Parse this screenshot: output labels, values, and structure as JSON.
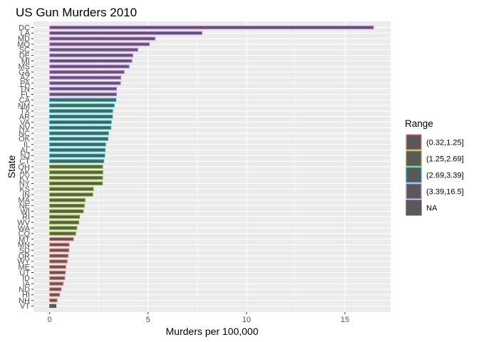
{
  "chart_data": {
    "type": "bar",
    "orientation": "horizontal",
    "title": "US Gun Murders 2010",
    "xlabel": "Murders per 100,000",
    "ylabel": "State",
    "xlim": [
      -0.82,
      17.32
    ],
    "x_ticks": [
      0,
      5,
      10,
      15
    ],
    "x_tick_labels": [
      "0",
      "5",
      "10",
      "15"
    ],
    "grid": true,
    "legend_position": "right",
    "legend": {
      "title": "Range",
      "entries": [
        {
          "label": "(0.32,1.25]",
          "color": "#F8766D"
        },
        {
          "label": "(1.25,2.69]",
          "color": "#7CAE00"
        },
        {
          "label": "(2.69,3.39]",
          "color": "#00BFC4"
        },
        {
          "label": "(3.39,16.5]",
          "color": "#C77CFF"
        },
        {
          "label": "NA",
          "color": "#595959"
        }
      ]
    },
    "categories": [
      "DC",
      "LA",
      "MD",
      "MO",
      "SC",
      "DE",
      "MI",
      "MS",
      "GA",
      "AZ",
      "PA",
      "TN",
      "FL",
      "CA",
      "NM",
      "TX",
      "AR",
      "VA",
      "NV",
      "NC",
      "OK",
      "IL",
      "AL",
      "NJ",
      "CT",
      "OH",
      "AK",
      "KY",
      "NY",
      "KS",
      "IN",
      "MA",
      "NE",
      "WI",
      "RI",
      "WV",
      "WA",
      "CO",
      "MT",
      "MN",
      "SD",
      "OR",
      "WY",
      "ME",
      "UT",
      "ID",
      "IA",
      "ND",
      "HI",
      "NH",
      "VT"
    ],
    "values": [
      16.45,
      7.74,
      5.36,
      5.07,
      4.48,
      4.23,
      4.18,
      4.04,
      3.79,
      3.62,
      3.6,
      3.4,
      3.4,
      3.37,
      3.28,
      3.2,
      3.19,
      3.13,
      3.11,
      2.99,
      2.96,
      2.84,
      2.82,
      2.8,
      2.75,
      2.69,
      2.7,
      2.69,
      2.68,
      2.22,
      2.19,
      1.8,
      1.76,
      1.71,
      1.52,
      1.48,
      1.38,
      1.32,
      1.21,
      0.99,
      0.98,
      0.94,
      0.89,
      0.82,
      0.8,
      0.77,
      0.69,
      0.59,
      0.51,
      0.38,
      0.32
    ],
    "range": [
      "(3.39,16.5]",
      "(3.39,16.5]",
      "(3.39,16.5]",
      "(3.39,16.5]",
      "(3.39,16.5]",
      "(3.39,16.5]",
      "(3.39,16.5]",
      "(3.39,16.5]",
      "(3.39,16.5]",
      "(3.39,16.5]",
      "(3.39,16.5]",
      "(3.39,16.5]",
      "(3.39,16.5]",
      "(2.69,3.39]",
      "(2.69,3.39]",
      "(2.69,3.39]",
      "(2.69,3.39]",
      "(2.69,3.39]",
      "(2.69,3.39]",
      "(2.69,3.39]",
      "(2.69,3.39]",
      "(2.69,3.39]",
      "(2.69,3.39]",
      "(2.69,3.39]",
      "(2.69,3.39]",
      "(1.25,2.69]",
      "(1.25,2.69]",
      "(1.25,2.69]",
      "(1.25,2.69]",
      "(1.25,2.69]",
      "(1.25,2.69]",
      "(1.25,2.69]",
      "(1.25,2.69]",
      "(1.25,2.69]",
      "(1.25,2.69]",
      "(1.25,2.69]",
      "(1.25,2.69]",
      "(1.25,2.69]",
      "(0.32,1.25]",
      "(0.32,1.25]",
      "(0.32,1.25]",
      "(0.32,1.25]",
      "(0.32,1.25]",
      "(0.32,1.25]",
      "(0.32,1.25]",
      "(0.32,1.25]",
      "(0.32,1.25]",
      "(0.32,1.25]",
      "(0.32,1.25]",
      "(0.32,1.25]",
      "NA"
    ],
    "colors": {
      "panel_background": "#EBEBEB",
      "grid": "#FFFFFF",
      "bar_fill": "#595959"
    }
  }
}
